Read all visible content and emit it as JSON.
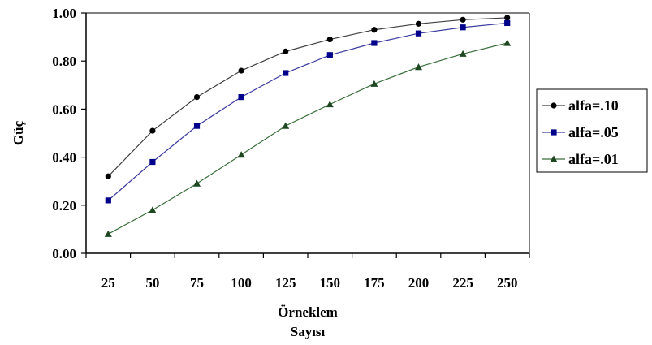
{
  "chart_data": {
    "type": "line",
    "x": [
      25,
      50,
      75,
      100,
      125,
      150,
      175,
      200,
      225,
      250
    ],
    "categories": [
      "25",
      "50",
      "75",
      "100",
      "125",
      "150",
      "175",
      "200",
      "225",
      "250"
    ],
    "y_ticks": [
      "0.00",
      "0.20",
      "0.40",
      "0.60",
      "0.80",
      "1.00"
    ],
    "ylim": [
      0,
      1
    ],
    "ylabel": "Güç",
    "xlabel": [
      "Örneklem",
      "Sayısı"
    ],
    "grid": false,
    "legend_position": "right",
    "series": [
      {
        "name": "alfa=.10",
        "marker": "circle",
        "color": "#000000",
        "line_color": "#404040",
        "values": [
          0.32,
          0.51,
          0.65,
          0.76,
          0.84,
          0.89,
          0.93,
          0.955,
          0.972,
          0.98
        ]
      },
      {
        "name": "alfa=.05",
        "marker": "square",
        "color": "#00008B",
        "line_color": "#3a3aa0",
        "values": [
          0.22,
          0.38,
          0.53,
          0.65,
          0.75,
          0.825,
          0.875,
          0.915,
          0.94,
          0.958
        ]
      },
      {
        "name": "alfa=.01",
        "marker": "triangle",
        "color": "#1E4620",
        "line_color": "#3a6e3c",
        "values": [
          0.08,
          0.18,
          0.29,
          0.41,
          0.53,
          0.62,
          0.705,
          0.775,
          0.83,
          0.875
        ]
      }
    ]
  }
}
